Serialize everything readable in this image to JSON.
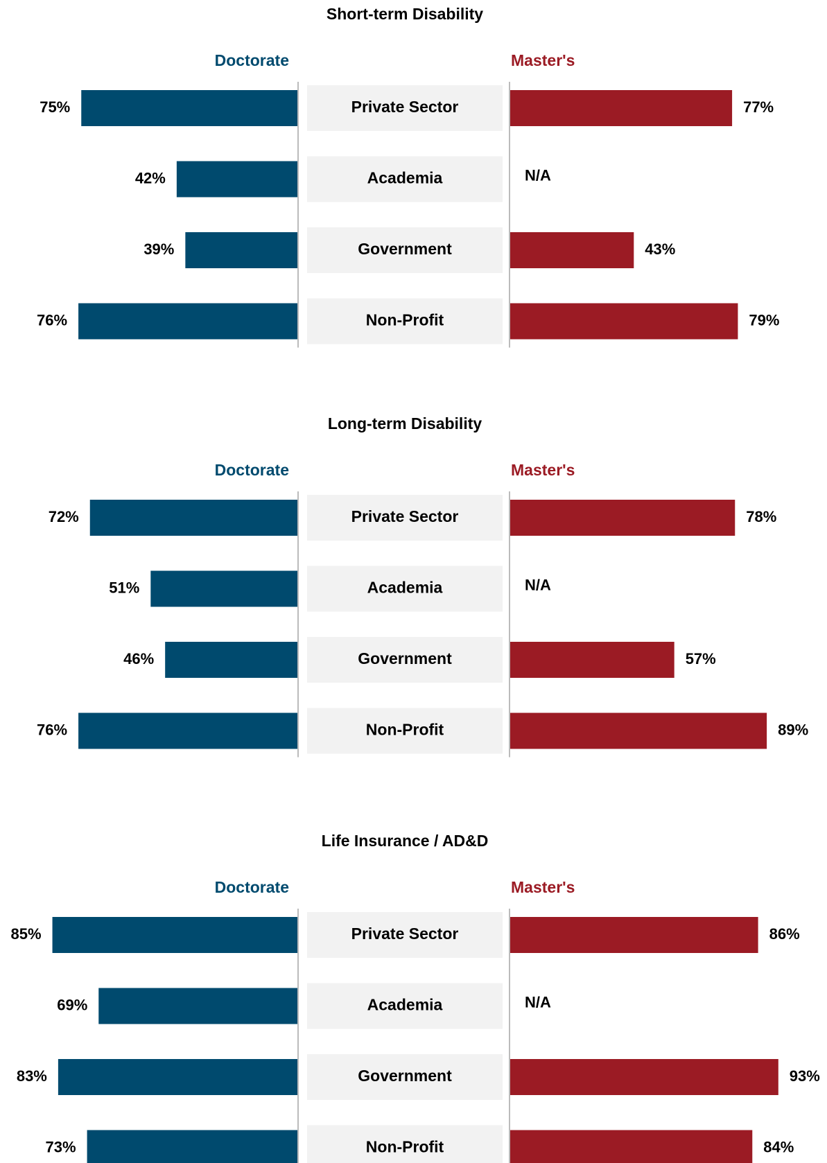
{
  "chart_data": [
    {
      "type": "butterfly-bar",
      "title": "Short-term Disability",
      "categories": [
        "Private Sector",
        "Academia",
        "Government",
        "Non-Profit"
      ],
      "series": [
        {
          "name": "Doctorate",
          "color": "#004a6e",
          "values": [
            75,
            42,
            39,
            76
          ],
          "value_labels": [
            "75%",
            "42%",
            "39%",
            "76%"
          ]
        },
        {
          "name": "Master's",
          "color": "#9b1b24",
          "values": [
            77,
            null,
            43,
            79
          ],
          "value_labels": [
            "77%",
            "N/A",
            "43%",
            "79%"
          ]
        }
      ]
    },
    {
      "type": "butterfly-bar",
      "title": "Long-term Disability",
      "categories": [
        "Private Sector",
        "Academia",
        "Government",
        "Non-Profit"
      ],
      "series": [
        {
          "name": "Doctorate",
          "color": "#004a6e",
          "values": [
            72,
            51,
            46,
            76
          ],
          "value_labels": [
            "72%",
            "51%",
            "46%",
            "76%"
          ]
        },
        {
          "name": "Master's",
          "color": "#9b1b24",
          "values": [
            78,
            null,
            57,
            89
          ],
          "value_labels": [
            "78%",
            "N/A",
            "57%",
            "89%"
          ]
        }
      ]
    },
    {
      "type": "butterfly-bar",
      "title": "Life Insurance / AD&D",
      "categories": [
        "Private Sector",
        "Academia",
        "Government",
        "Non-Profit"
      ],
      "series": [
        {
          "name": "Doctorate",
          "color": "#004a6e",
          "values": [
            85,
            69,
            83,
            73
          ],
          "value_labels": [
            "85%",
            "69%",
            "83%",
            "73%"
          ]
        },
        {
          "name": "Master's",
          "color": "#9b1b24",
          "values": [
            86,
            null,
            93,
            84
          ],
          "value_labels": [
            "86%",
            "N/A",
            "93%",
            "84%"
          ]
        }
      ]
    }
  ]
}
